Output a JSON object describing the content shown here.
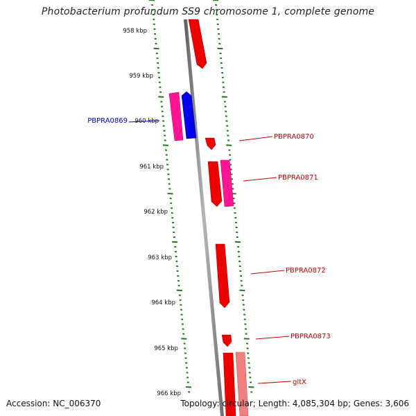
{
  "title": "Photobacterium profundum SS9 chromosome 1, complete genome",
  "footer": {
    "accession": "Accession: NC_006370",
    "topology": "Topology: circular; Length: 4,085,304 bp; Genes: 3,606"
  },
  "colors": {
    "forward_gene": "#ff0000",
    "reverse_gene": "#0000ff",
    "magenta_gene": "#ff1493",
    "pale_gene": "#f08080",
    "tick": "#1a7a1a",
    "label_forward": "#cc0000",
    "label_reverse": "#0000cc",
    "backbone": "#808080"
  },
  "ticks": [
    {
      "label": "958 kbp"
    },
    {
      "label": "959 kbp"
    },
    {
      "label": "960 kbp"
    },
    {
      "label": "961 kbp"
    },
    {
      "label": "962 kbp"
    },
    {
      "label": "963 kbp"
    },
    {
      "label": "964 kbp"
    },
    {
      "label": "965 kbp"
    },
    {
      "label": "966 kbp"
    }
  ],
  "gene_labels": [
    {
      "label": "PBPRA0869",
      "strand": "reverse"
    },
    {
      "label": "PBPRA0870",
      "strand": "forward"
    },
    {
      "label": "PBPRA0871",
      "strand": "forward"
    },
    {
      "label": "PBPRA0872",
      "strand": "forward"
    },
    {
      "label": "PBPRA0873",
      "strand": "forward"
    },
    {
      "label": "gltX",
      "strand": "forward"
    }
  ]
}
